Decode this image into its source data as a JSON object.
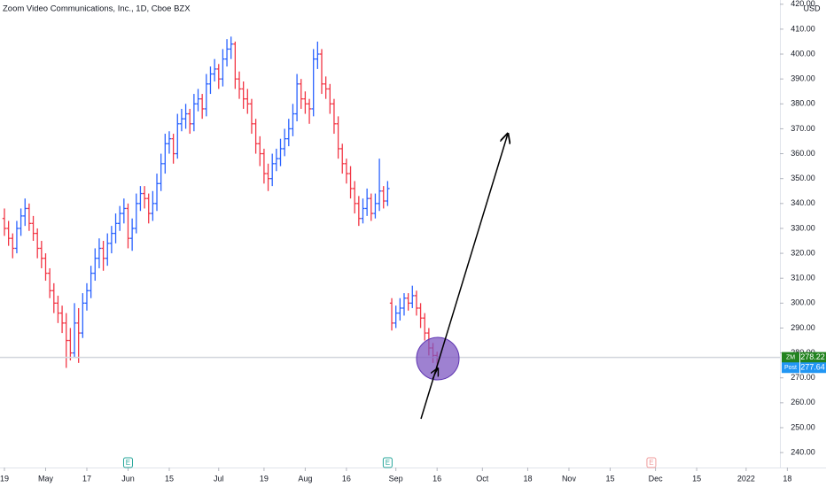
{
  "chart_data": {
    "type": "ohlc",
    "title": "Zoom Video Communications, Inc., 1D, Cboe BZX",
    "currency": "USD",
    "up_color": "#2962ff",
    "down_color": "#f23645",
    "ylim": [
      234,
      421.7
    ],
    "xlim": [
      -1.075,
      188.2
    ],
    "yticks": [
      {
        "value": 240,
        "label": "240.00"
      },
      {
        "value": 250,
        "label": "250.00"
      },
      {
        "value": 260,
        "label": "260.00"
      },
      {
        "value": 270,
        "label": "270.00"
      },
      {
        "value": 280,
        "label": "280.00"
      },
      {
        "value": 290,
        "label": "290.00"
      },
      {
        "value": 300,
        "label": "300.00"
      },
      {
        "value": 310,
        "label": "310.00"
      },
      {
        "value": 320,
        "label": "320.00"
      },
      {
        "value": 330,
        "label": "330.00"
      },
      {
        "value": 340,
        "label": "340.00"
      },
      {
        "value": 350,
        "label": "350.00"
      },
      {
        "value": 360,
        "label": "360.00"
      },
      {
        "value": 370,
        "label": "370.00"
      },
      {
        "value": 380,
        "label": "380.00"
      },
      {
        "value": 390,
        "label": "390.00"
      },
      {
        "value": 400,
        "label": "400.00"
      },
      {
        "value": 410,
        "label": "410.00"
      },
      {
        "value": 420,
        "label": "420.00"
      }
    ],
    "xticks": [
      {
        "value": 0,
        "label": "19"
      },
      {
        "value": 10,
        "label": "May"
      },
      {
        "value": 20,
        "label": "17"
      },
      {
        "value": 30,
        "label": "Jun"
      },
      {
        "value": 40,
        "label": "15"
      },
      {
        "value": 52,
        "label": "Jul"
      },
      {
        "value": 63,
        "label": "19"
      },
      {
        "value": 73,
        "label": "Aug"
      },
      {
        "value": 83,
        "label": "16"
      },
      {
        "value": 95,
        "label": "Sep"
      },
      {
        "value": 105,
        "label": "16"
      },
      {
        "value": 116,
        "label": "Oct"
      },
      {
        "value": 127,
        "label": "18"
      },
      {
        "value": 137,
        "label": "Nov"
      },
      {
        "value": 147,
        "label": "15"
      },
      {
        "value": 158,
        "label": "Dec"
      },
      {
        "value": 168,
        "label": "15"
      },
      {
        "value": 180,
        "label": "2022"
      },
      {
        "value": 190,
        "label": "18"
      }
    ],
    "ohlc": [
      [
        334,
        338,
        327,
        330
      ],
      [
        330,
        333,
        323,
        326
      ],
      [
        326,
        328,
        318,
        322
      ],
      [
        322,
        333,
        320,
        330
      ],
      [
        330,
        338,
        327,
        335
      ],
      [
        335,
        342,
        331,
        338
      ],
      [
        338,
        340,
        329,
        332
      ],
      [
        332,
        335,
        325,
        328
      ],
      [
        328,
        330,
        318,
        322
      ],
      [
        322,
        325,
        314,
        318
      ],
      [
        318,
        320,
        309,
        312
      ],
      [
        312,
        314,
        302,
        305
      ],
      [
        305,
        308,
        296,
        300
      ],
      [
        300,
        303,
        292,
        296
      ],
      [
        296,
        299,
        288,
        292
      ],
      [
        292,
        296,
        274,
        285
      ],
      [
        285,
        290,
        277,
        280
      ],
      [
        280,
        300,
        278,
        292
      ],
      [
        292,
        298,
        276,
        288
      ],
      [
        288,
        304,
        286,
        300
      ],
      [
        300,
        308,
        297,
        305
      ],
      [
        305,
        315,
        302,
        312
      ],
      [
        312,
        322,
        309,
        318
      ],
      [
        318,
        326,
        314,
        322
      ],
      [
        322,
        325,
        313,
        318
      ],
      [
        318,
        328,
        315,
        324
      ],
      [
        324,
        331,
        320,
        328
      ],
      [
        328,
        336,
        324,
        332
      ],
      [
        332,
        339,
        329,
        336
      ],
      [
        336,
        342,
        332,
        338
      ],
      [
        338,
        340,
        322,
        326
      ],
      [
        326,
        334,
        321,
        330
      ],
      [
        330,
        344,
        328,
        340
      ],
      [
        340,
        347,
        337,
        344
      ],
      [
        344,
        347,
        338,
        342
      ],
      [
        342,
        344,
        332,
        336
      ],
      [
        336,
        345,
        333,
        340
      ],
      [
        340,
        352,
        337,
        348
      ],
      [
        348,
        360,
        345,
        356
      ],
      [
        356,
        368,
        352,
        364
      ],
      [
        364,
        369,
        360,
        366
      ],
      [
        366,
        368,
        356,
        360
      ],
      [
        360,
        376,
        358,
        372
      ],
      [
        372,
        378,
        369,
        374
      ],
      [
        374,
        380,
        370,
        376
      ],
      [
        376,
        378,
        368,
        372
      ],
      [
        372,
        384,
        369,
        380
      ],
      [
        380,
        386,
        377,
        382
      ],
      [
        382,
        384,
        374,
        378
      ],
      [
        378,
        392,
        375,
        388
      ],
      [
        388,
        395,
        384,
        392
      ],
      [
        392,
        398,
        389,
        394
      ],
      [
        394,
        396,
        386,
        390
      ],
      [
        390,
        402,
        387,
        398
      ],
      [
        398,
        406,
        395,
        402
      ],
      [
        402,
        407,
        398,
        404
      ],
      [
        404,
        405,
        386,
        390
      ],
      [
        390,
        393,
        382,
        386
      ],
      [
        386,
        389,
        378,
        382
      ],
      [
        382,
        386,
        376,
        380
      ],
      [
        380,
        382,
        368,
        372
      ],
      [
        372,
        374,
        360,
        364
      ],
      [
        364,
        367,
        355,
        360
      ],
      [
        360,
        362,
        348,
        352
      ],
      [
        352,
        356,
        345,
        350
      ],
      [
        350,
        360,
        347,
        356
      ],
      [
        356,
        362,
        353,
        358
      ],
      [
        358,
        366,
        355,
        362
      ],
      [
        362,
        370,
        359,
        366
      ],
      [
        366,
        374,
        363,
        370
      ],
      [
        370,
        380,
        367,
        376
      ],
      [
        376,
        392,
        373,
        388
      ],
      [
        388,
        390,
        378,
        382
      ],
      [
        382,
        385,
        376,
        380
      ],
      [
        380,
        382,
        372,
        378
      ],
      [
        378,
        402,
        375,
        398
      ],
      [
        398,
        405,
        394,
        400
      ],
      [
        400,
        402,
        384,
        388
      ],
      [
        388,
        391,
        382,
        386
      ],
      [
        386,
        388,
        376,
        380
      ],
      [
        380,
        382,
        368,
        372
      ],
      [
        372,
        375,
        358,
        362
      ],
      [
        362,
        364,
        352,
        356
      ],
      [
        356,
        358,
        348,
        352
      ],
      [
        352,
        355,
        342,
        346
      ],
      [
        346,
        349,
        336,
        340
      ],
      [
        340,
        343,
        331,
        334
      ],
      [
        334,
        342,
        332,
        338
      ],
      [
        338,
        346,
        335,
        342
      ],
      [
        342,
        344,
        333,
        336
      ],
      [
        336,
        344,
        334,
        340
      ],
      [
        340,
        358,
        337,
        345
      ],
      [
        345,
        347,
        338,
        341
      ],
      [
        341,
        349,
        339,
        346
      ],
      [
        300,
        302,
        289,
        292
      ],
      [
        292,
        299,
        290,
        296
      ],
      [
        296,
        302,
        293,
        298
      ],
      [
        298,
        304,
        295,
        302
      ],
      [
        302,
        304,
        297,
        300
      ],
      [
        300,
        307,
        298,
        303
      ],
      [
        303,
        305,
        295,
        298
      ],
      [
        298,
        300,
        290,
        294
      ],
      [
        294,
        296,
        285,
        288
      ],
      [
        288,
        290,
        279,
        282
      ],
      [
        282,
        284,
        276,
        279
      ],
      [
        279,
        280.5,
        273.5,
        278.22
      ]
    ],
    "last_price": {
      "symbol": "ZM",
      "value": 278.22,
      "color": "#22831f"
    },
    "post_price": {
      "label": "Post",
      "value": 277.64,
      "color": "#2196f3"
    },
    "events": [
      {
        "x": 30,
        "label": "E",
        "color": "#26a69a"
      },
      {
        "x": 93,
        "label": "E",
        "color": "#26a69a"
      },
      {
        "x": 157,
        "label": "E",
        "color": "#ef9a9a"
      }
    ]
  }
}
